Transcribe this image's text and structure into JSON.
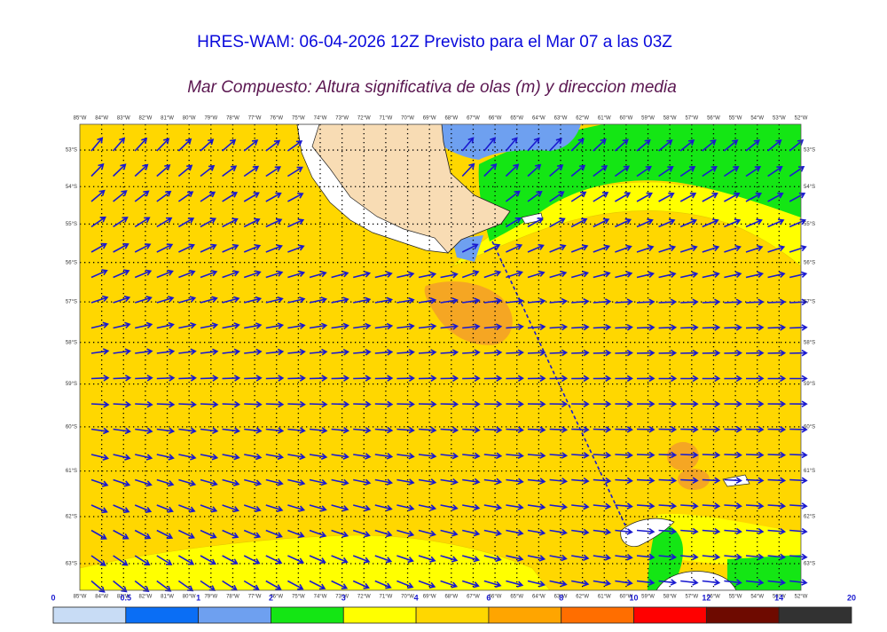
{
  "header": {
    "title": "HRES-WAM: 06-04-2026 12Z Previsto para el Mar 07 a las 03Z",
    "subtitle": "Mar Compuesto: Altura significativa de olas (m) y direccion media"
  },
  "map": {
    "xlim": [
      -85,
      -52
    ],
    "ylim": [
      -63.55,
      -52.28
    ],
    "xticks": [
      {
        "value": -85,
        "label": "85°W"
      },
      {
        "value": -84,
        "label": "84°W"
      },
      {
        "value": -83,
        "label": "83°W"
      },
      {
        "value": -82,
        "label": "82°W"
      },
      {
        "value": -81,
        "label": "81°W"
      },
      {
        "value": -80,
        "label": "80°W"
      },
      {
        "value": -79,
        "label": "79°W"
      },
      {
        "value": -78,
        "label": "78°W"
      },
      {
        "value": -77,
        "label": "77°W"
      },
      {
        "value": -76,
        "label": "76°W"
      },
      {
        "value": -75,
        "label": "75°W"
      },
      {
        "value": -74,
        "label": "74°W"
      },
      {
        "value": -73,
        "label": "73°W"
      },
      {
        "value": -72,
        "label": "72°W"
      },
      {
        "value": -71,
        "label": "71°W"
      },
      {
        "value": -70,
        "label": "70°W"
      },
      {
        "value": -69,
        "label": "69°W"
      },
      {
        "value": -68,
        "label": "68°W"
      },
      {
        "value": -67,
        "label": "67°W"
      },
      {
        "value": -66,
        "label": "66°W"
      },
      {
        "value": -65,
        "label": "65°W"
      },
      {
        "value": -64,
        "label": "64°W"
      },
      {
        "value": -63,
        "label": "63°W"
      },
      {
        "value": -62,
        "label": "62°W"
      },
      {
        "value": -61,
        "label": "61°W"
      },
      {
        "value": -60,
        "label": "60°W"
      },
      {
        "value": -59,
        "label": "59°W"
      },
      {
        "value": -58,
        "label": "58°W"
      },
      {
        "value": -57,
        "label": "57°W"
      },
      {
        "value": -56,
        "label": "56°W"
      },
      {
        "value": -55,
        "label": "55°W"
      },
      {
        "value": -54,
        "label": "54°W"
      },
      {
        "value": -53,
        "label": "53°W"
      },
      {
        "value": -52,
        "label": "52°W"
      }
    ],
    "yticks": [
      {
        "value": -53,
        "label": "53°S"
      },
      {
        "value": -54,
        "label": "54°S"
      },
      {
        "value": -55,
        "label": "55°S"
      },
      {
        "value": -56,
        "label": "56°S"
      },
      {
        "value": -57,
        "label": "57°S"
      },
      {
        "value": -58,
        "label": "58°S"
      },
      {
        "value": -59,
        "label": "59°S"
      },
      {
        "value": -60,
        "label": "60°S"
      },
      {
        "value": -61,
        "label": "61°S"
      },
      {
        "value": -62,
        "label": "62°S"
      },
      {
        "value": -63,
        "label": "63°S"
      }
    ]
  },
  "colorbar": {
    "ticks": [
      0,
      0.5,
      1,
      2,
      3,
      4,
      6,
      8,
      10,
      12,
      14,
      20
    ],
    "colors": [
      "#c8dcf5",
      "#0a6ef5",
      "#6ea0f0",
      "#14e614",
      "#ffff00",
      "#ffd700",
      "#ffa500",
      "#ff6e00",
      "#ff0000",
      "#6e0a00",
      "#323232"
    ]
  }
}
